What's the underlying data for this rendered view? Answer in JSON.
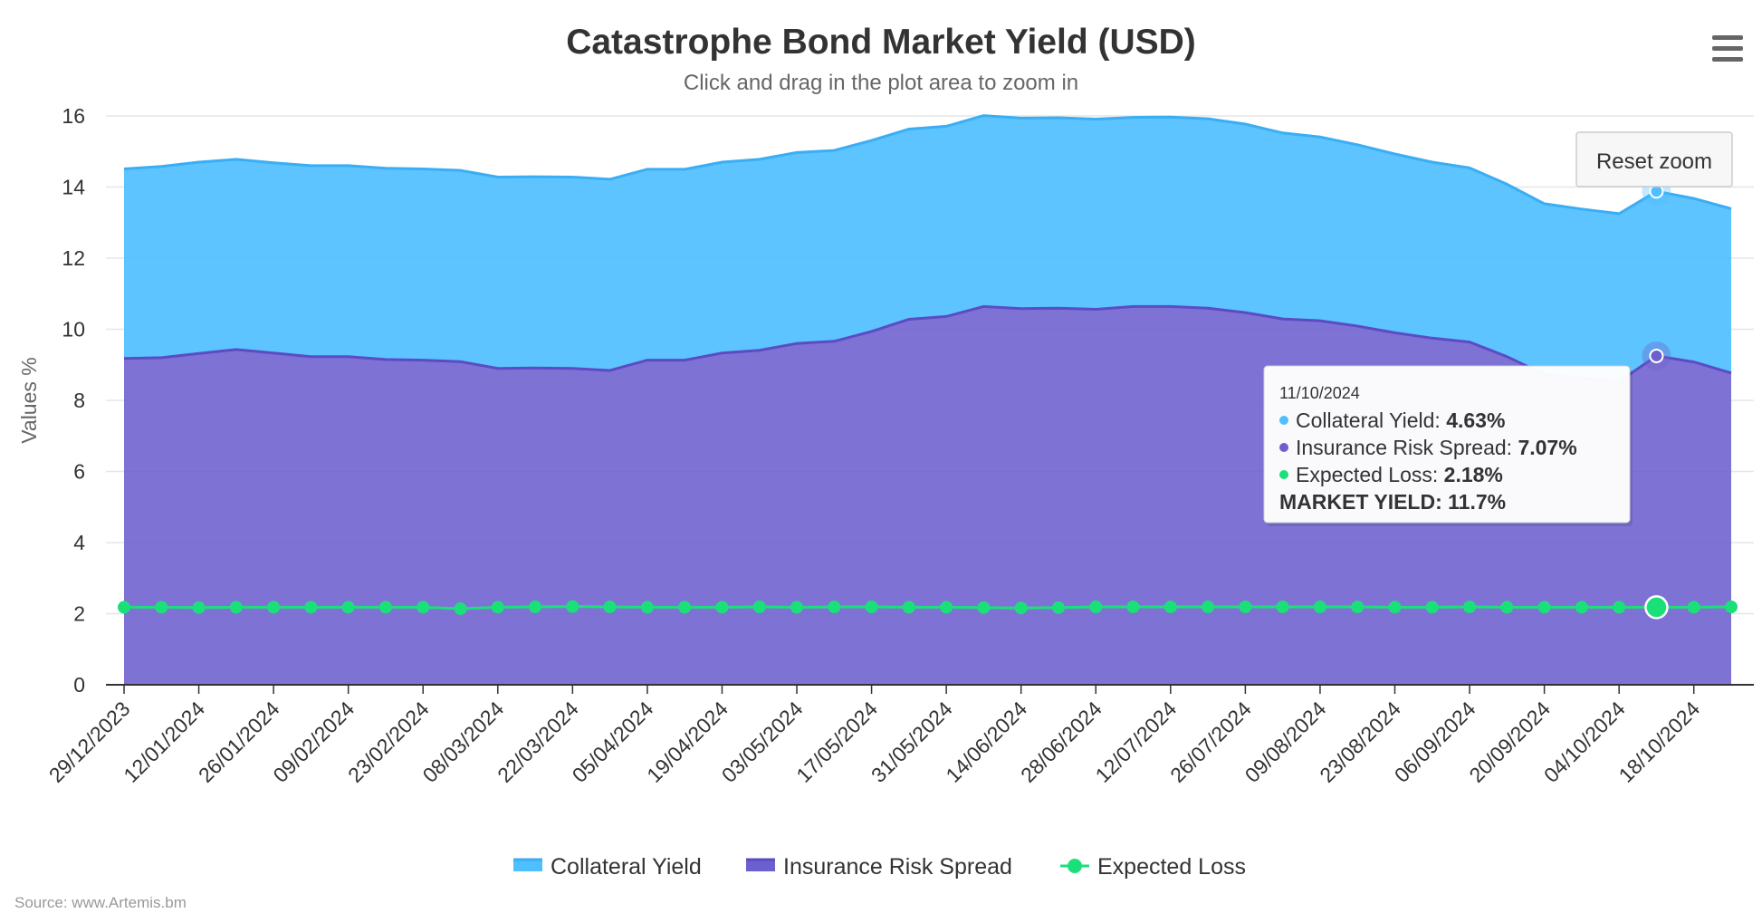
{
  "chart_data": {
    "type": "area",
    "title": "Catastrophe Bond Market Yield (USD)",
    "subtitle": "Click and drag in the plot area to zoom in",
    "ylabel": "Values %",
    "xlabel": "",
    "ylim": [
      0,
      16
    ],
    "yticks": [
      0,
      2,
      4,
      6,
      8,
      10,
      12,
      14,
      16
    ],
    "grid": true,
    "legend_position": "bottom",
    "stacking": "normal",
    "x": [
      "29/12/2023",
      "05/01/2024",
      "12/01/2024",
      "19/01/2024",
      "26/01/2024",
      "02/02/2024",
      "09/02/2024",
      "16/02/2024",
      "23/02/2024",
      "01/03/2024",
      "08/03/2024",
      "15/03/2024",
      "22/03/2024",
      "29/03/2024",
      "05/04/2024",
      "12/04/2024",
      "19/04/2024",
      "26/04/2024",
      "03/05/2024",
      "10/05/2024",
      "17/05/2024",
      "24/05/2024",
      "31/05/2024",
      "07/06/2024",
      "14/06/2024",
      "21/06/2024",
      "28/06/2024",
      "05/07/2024",
      "12/07/2024",
      "19/07/2024",
      "26/07/2024",
      "02/08/2024",
      "09/08/2024",
      "16/08/2024",
      "23/08/2024",
      "30/08/2024",
      "06/09/2024",
      "13/09/2024",
      "20/09/2024",
      "27/09/2024",
      "04/10/2024",
      "11/10/2024",
      "18/10/2024",
      "25/10/2024"
    ],
    "x_tick_labels": [
      "29/12/2023",
      "12/01/2024",
      "26/01/2024",
      "09/02/2024",
      "23/02/2024",
      "08/03/2024",
      "22/03/2024",
      "05/04/2024",
      "19/04/2024",
      "03/05/2024",
      "17/05/2024",
      "31/05/2024",
      "14/06/2024",
      "28/06/2024",
      "12/07/2024",
      "26/07/2024",
      "09/08/2024",
      "23/08/2024",
      "06/09/2024",
      "20/09/2024",
      "04/10/2024",
      "18/10/2024"
    ],
    "series": [
      {
        "name": "Collateral Yield",
        "color": "#4fbfff",
        "values": [
          5.33,
          5.38,
          5.38,
          5.35,
          5.35,
          5.37,
          5.37,
          5.38,
          5.38,
          5.38,
          5.38,
          5.38,
          5.38,
          5.38,
          5.37,
          5.37,
          5.37,
          5.37,
          5.37,
          5.37,
          5.37,
          5.35,
          5.35,
          5.37,
          5.36,
          5.36,
          5.35,
          5.32,
          5.33,
          5.33,
          5.3,
          5.23,
          5.17,
          5.1,
          5.03,
          4.95,
          4.9,
          4.85,
          4.8,
          4.75,
          4.72,
          4.63,
          4.6,
          4.62
        ]
      },
      {
        "name": "Insurance Risk Spread",
        "color": "#6c5fce",
        "values": [
          7.0,
          7.02,
          7.15,
          7.25,
          7.15,
          7.05,
          7.05,
          6.97,
          6.95,
          6.95,
          6.72,
          6.72,
          6.7,
          6.65,
          6.95,
          6.95,
          7.15,
          7.22,
          7.42,
          7.47,
          7.75,
          8.1,
          8.18,
          8.47,
          8.42,
          8.42,
          8.37,
          8.45,
          8.45,
          8.4,
          8.28,
          8.1,
          8.05,
          7.9,
          7.72,
          7.57,
          7.45,
          7.05,
          6.55,
          6.45,
          6.35,
          7.07,
          6.9,
          6.58
        ]
      },
      {
        "name": "Expected Loss",
        "color": "#1be07a",
        "values": [
          2.18,
          2.18,
          2.17,
          2.18,
          2.18,
          2.18,
          2.18,
          2.18,
          2.18,
          2.14,
          2.18,
          2.19,
          2.2,
          2.19,
          2.18,
          2.18,
          2.18,
          2.19,
          2.18,
          2.19,
          2.19,
          2.18,
          2.18,
          2.17,
          2.16,
          2.17,
          2.19,
          2.19,
          2.19,
          2.19,
          2.19,
          2.19,
          2.19,
          2.19,
          2.18,
          2.18,
          2.19,
          2.18,
          2.18,
          2.18,
          2.18,
          2.18,
          2.18,
          2.19
        ]
      }
    ],
    "highlighted_index": 41,
    "tooltip": {
      "date": "11/10/2024",
      "lines": [
        {
          "label": "Collateral Yield: ",
          "value": "4.63%",
          "color": "#4fbfff"
        },
        {
          "label": "Insurance Risk Spread: ",
          "value": "7.07%",
          "color": "#6c5fce"
        },
        {
          "label": "Expected Loss: ",
          "value": "2.18%",
          "color": "#1be07a"
        }
      ],
      "total_line": "MARKET YIELD: 11.7%"
    }
  },
  "controls": {
    "reset_zoom_label": "Reset zoom",
    "menu_icon": "hamburger-menu-icon"
  },
  "credit": "Source: www.Artemis.bm"
}
